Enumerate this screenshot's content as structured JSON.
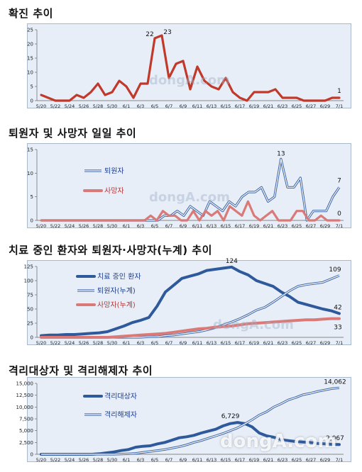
{
  "x_labels": [
    "5/20",
    "5/22",
    "5/24",
    "5/26",
    "5/28",
    "5/30",
    "6/1",
    "6/3",
    "6/5",
    "6/7",
    "6/9",
    "6/11",
    "6/13",
    "6/15",
    "6/17",
    "6/19",
    "6/21",
    "6/23",
    "6/25",
    "6/27",
    "6/29",
    "7/1"
  ],
  "colors": {
    "red": "#c0392b",
    "pink": "#d97a78",
    "blue": "#2e5a9c",
    "double_blue": "#3a63a8"
  },
  "chart_data": [
    {
      "type": "line",
      "title": "확진 추이",
      "ylim": [
        0,
        25
      ],
      "yticks": [
        0,
        5,
        10,
        15,
        20,
        25
      ],
      "series": [
        {
          "color": "#c0392b",
          "style": "solid",
          "values": [
            2,
            1,
            0,
            0,
            0,
            2,
            1,
            3,
            6,
            2,
            3,
            7,
            5,
            1,
            6,
            6,
            22,
            23,
            8,
            13,
            14,
            4,
            12,
            7,
            5,
            4,
            8,
            3,
            1,
            0,
            3,
            3,
            3,
            4,
            1,
            1,
            1,
            0,
            0,
            0,
            0,
            1,
            1
          ]
        }
      ],
      "annotations": [
        {
          "i": 16,
          "text": "22",
          "dx": -7,
          "dy": -3
        },
        {
          "i": 17,
          "text": "23",
          "dx": 8,
          "dy": -2
        },
        {
          "i": 42,
          "text": "1",
          "dx": 0,
          "dy": -7
        }
      ]
    },
    {
      "type": "line",
      "title": "퇴원자 및 사망자 일일 추이",
      "ylim": [
        0,
        15
      ],
      "yticks": [
        0,
        5,
        10,
        15
      ],
      "series": [
        {
          "name": "퇴원자",
          "color": "#3a63a8",
          "style": "double",
          "values": [
            0,
            0,
            0,
            0,
            0,
            0,
            0,
            0,
            0,
            0,
            0,
            0,
            0,
            0,
            0,
            0,
            0,
            0,
            0,
            1,
            1,
            2,
            1,
            3,
            2,
            1,
            4,
            3,
            2,
            4,
            3,
            5,
            6,
            6,
            7,
            4,
            5,
            13,
            7,
            7,
            9,
            0,
            2,
            2,
            2,
            5,
            7
          ]
        },
        {
          "name": "사망자",
          "color": "#d97a78",
          "style": "solid",
          "values": [
            0,
            0,
            0,
            0,
            0,
            0,
            0,
            0,
            0,
            0,
            0,
            0,
            0,
            0,
            0,
            0,
            0,
            0,
            1,
            0,
            2,
            1,
            1,
            0,
            0,
            2,
            0,
            2,
            1,
            2,
            0,
            3,
            2,
            1,
            4,
            1,
            0,
            1,
            2,
            0,
            0,
            0,
            2,
            2,
            0,
            0,
            1,
            0,
            0,
            0
          ]
        }
      ],
      "annotations": [
        {
          "s": 0,
          "i": 37,
          "text": "13",
          "dx": 0,
          "dy": -5
        },
        {
          "s": 0,
          "i": 46,
          "text": "7",
          "dx": 0,
          "dy": -7
        },
        {
          "s": 1,
          "i": 49,
          "text": "0",
          "dx": 0,
          "dy": -7
        }
      ]
    },
    {
      "type": "line",
      "title": "치료 중인 환자와 퇴원자·사망자(누계) 추이",
      "ylim": [
        0,
        125
      ],
      "yticks": [
        0,
        25,
        50,
        75,
        100,
        125
      ],
      "series": [
        {
          "name": "치료 중인 환자",
          "color": "#2e5a9c",
          "style": "thick",
          "values": [
            3,
            4,
            4,
            5,
            5,
            6,
            7,
            8,
            10,
            15,
            20,
            26,
            30,
            35,
            55,
            80,
            92,
            104,
            108,
            112,
            118,
            120,
            122,
            124,
            116,
            110,
            100,
            95,
            90,
            80,
            72,
            62,
            58,
            54,
            50,
            47,
            42
          ]
        },
        {
          "name": "퇴원자(누계)",
          "color": "#3a63a8",
          "style": "double",
          "values": [
            0,
            0,
            0,
            0,
            0,
            0,
            0,
            0,
            0,
            0,
            0,
            0,
            0,
            1,
            1,
            3,
            4,
            6,
            8,
            10,
            13,
            17,
            22,
            27,
            33,
            40,
            48,
            53,
            62,
            72,
            82,
            90,
            93,
            95,
            97,
            103,
            109
          ]
        },
        {
          "name": "사망자(누계)",
          "color": "#d97a78",
          "style": "thick",
          "values": [
            0,
            0,
            0,
            0,
            0,
            0,
            0,
            0,
            0,
            1,
            2,
            3,
            4,
            5,
            6,
            7,
            9,
            11,
            13,
            15,
            16,
            18,
            19,
            20,
            22,
            24,
            25,
            26,
            27,
            28,
            29,
            30,
            31,
            31,
            32,
            33,
            33
          ]
        }
      ],
      "annotations": [
        {
          "s": 0,
          "i": 23,
          "text": "124",
          "dx": 0,
          "dy": -6
        },
        {
          "s": 1,
          "i": 36,
          "text": "109",
          "dx": -6,
          "dy": -6
        },
        {
          "s": 0,
          "i": 36,
          "text": "42",
          "dx": -2,
          "dy": -6
        },
        {
          "s": 2,
          "i": 36,
          "text": "33",
          "dx": -2,
          "dy": 15
        }
      ]
    },
    {
      "type": "line",
      "title": "격리대상자 및 격리해제자 추이",
      "ylim": [
        0,
        15000
      ],
      "yticks": [
        0,
        2500,
        5000,
        7500,
        10000,
        12500,
        15000
      ],
      "ytick_labels": [
        "0",
        "2,500",
        "5,000",
        "7,500",
        "10,000",
        "12,500",
        "15,000"
      ],
      "series": [
        {
          "name": "격리대상자",
          "color": "#2e5a9c",
          "style": "thick",
          "values": [
            0,
            0,
            0,
            0,
            0,
            0,
            0,
            0,
            100,
            300,
            500,
            800,
            1000,
            1500,
            1700,
            1800,
            2200,
            2500,
            3000,
            3500,
            3700,
            4000,
            4500,
            4900,
            5300,
            6000,
            6500,
            6729,
            6500,
            5800,
            4500,
            3900,
            3600,
            3100,
            2900,
            2700,
            2600,
            2500,
            2300,
            2200,
            2100,
            2067
          ]
        },
        {
          "name": "격리해제자",
          "color": "#3a63a8",
          "style": "double",
          "values": [
            0,
            0,
            0,
            0,
            0,
            0,
            0,
            0,
            0,
            0,
            0,
            50,
            100,
            200,
            400,
            600,
            800,
            1000,
            1300,
            1600,
            2000,
            2500,
            2900,
            3400,
            3900,
            4400,
            5000,
            5600,
            6400,
            7300,
            8300,
            9000,
            10000,
            10700,
            11500,
            12000,
            12600,
            12900,
            13300,
            13600,
            13900,
            14062
          ]
        }
      ],
      "annotations": [
        {
          "s": 0,
          "i": 27,
          "text": "6,729",
          "dx": -10,
          "dy": -6
        },
        {
          "s": 1,
          "i": 41,
          "text": "14,062",
          "dx": -6,
          "dy": -6
        },
        {
          "s": 0,
          "i": 41,
          "text": "2,067",
          "dx": -6,
          "dy": -6
        }
      ]
    }
  ],
  "watermark": "dongA.com"
}
